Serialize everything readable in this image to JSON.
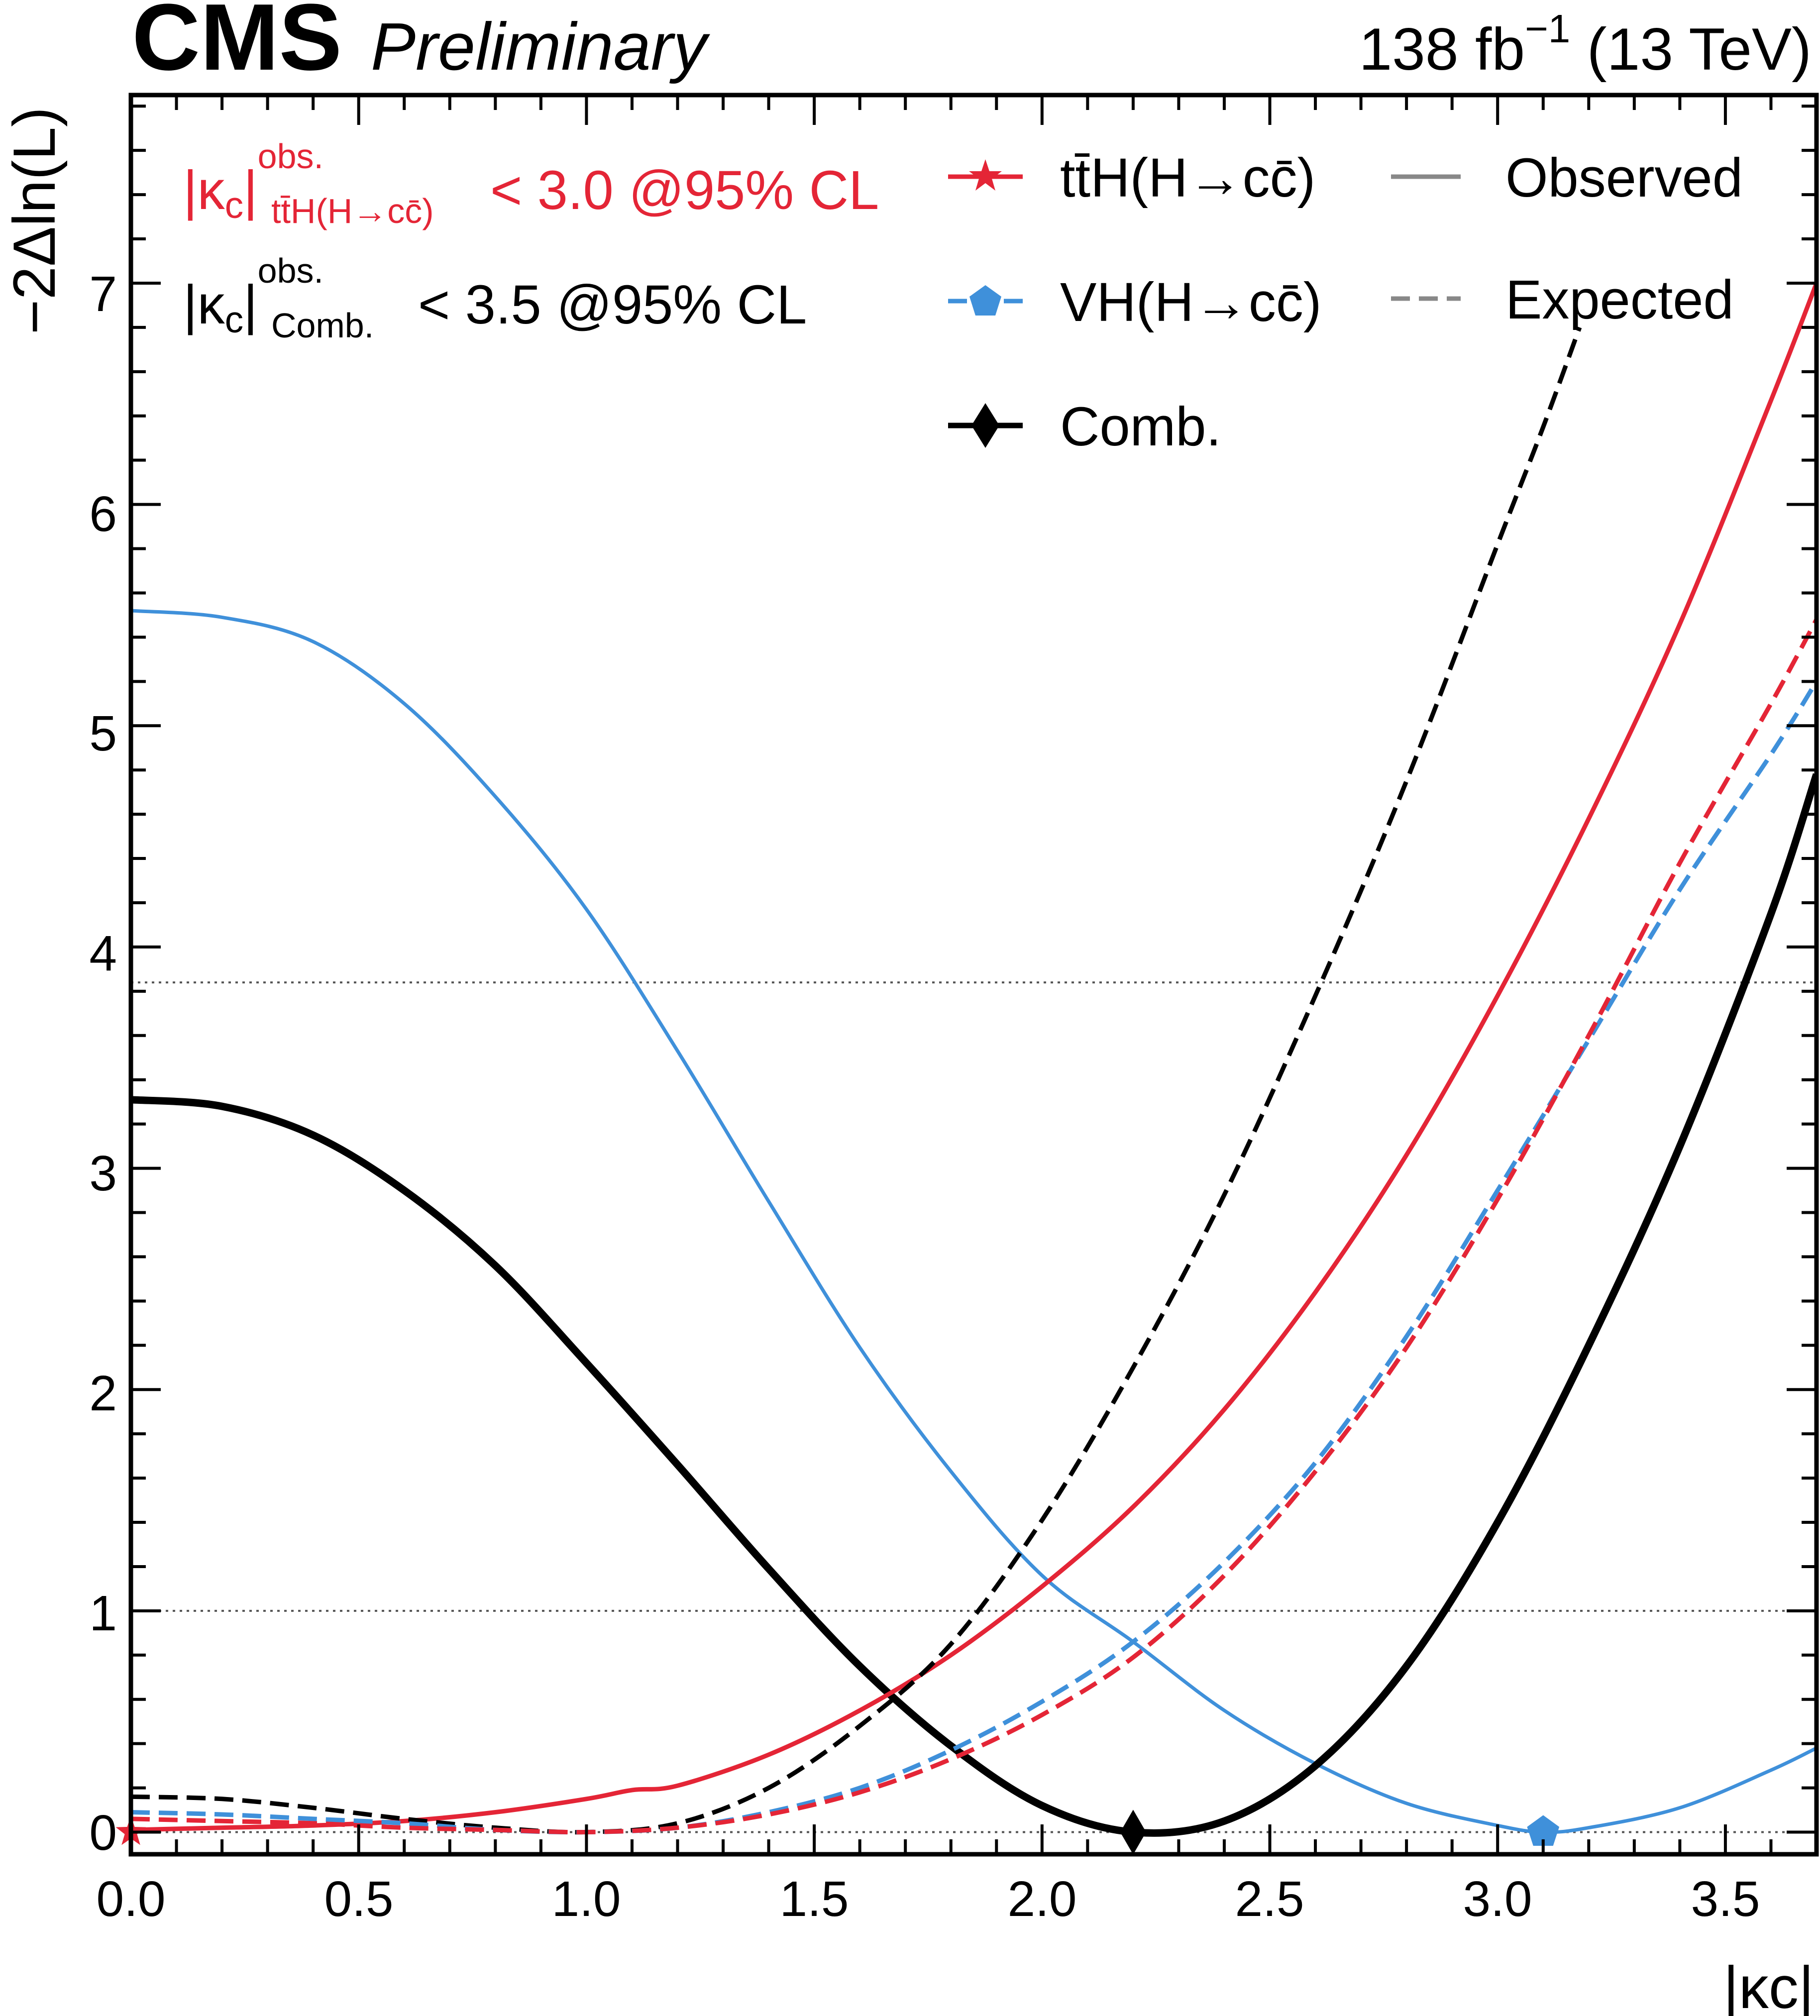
{
  "header": {
    "experiment": "CMS",
    "status": "Preliminary",
    "lumi_value": "138 fb",
    "lumi_exp": "−1",
    "energy": "(13 TeV)"
  },
  "annotations": {
    "tth_limit": {
      "prefix": "|κ",
      "sub": "c",
      "bar": "|",
      "sup": "obs.",
      "sub_label": "tt̄H(H→cc̄)",
      "text": "< 3.0 @95% CL",
      "color": "#e42536"
    },
    "comb_limit": {
      "prefix": "|κ",
      "sub": "c",
      "bar": "|",
      "sup": "obs.",
      "sub_label": "Comb.",
      "text": "< 3.5 @95% CL",
      "color": "#000000"
    }
  },
  "legend": {
    "entries": [
      {
        "label": "tt̄H(H→cc̄)",
        "color": "#e42536",
        "marker": "star"
      },
      {
        "label": "VH(H→cc̄)",
        "color": "#3f90da",
        "marker": "pentagon"
      },
      {
        "label": "Comb.",
        "color": "#000000",
        "marker": "diamond"
      }
    ],
    "styles": [
      {
        "label": "Observed",
        "color": "#888888",
        "dash": "solid"
      },
      {
        "label": "Expected",
        "color": "#888888",
        "dash": "dashed"
      }
    ]
  },
  "chart_data": {
    "type": "line",
    "xlabel": "|κc|",
    "ylabel": "−2Δln(L)",
    "xlim": [
      0.0,
      3.7
    ],
    "ylim": [
      -0.1,
      7.85
    ],
    "xticks": [
      "0.0",
      "0.5",
      "1.0",
      "1.5",
      "2.0",
      "2.5",
      "3.0",
      "3.5"
    ],
    "xtick_values": [
      0.0,
      0.5,
      1.0,
      1.5,
      2.0,
      2.5,
      3.0,
      3.5
    ],
    "yticks": [
      "0",
      "1",
      "2",
      "3",
      "4",
      "5",
      "6",
      "7"
    ],
    "ytick_values": [
      0,
      1,
      2,
      3,
      4,
      5,
      6,
      7
    ],
    "reference_lines": [
      0,
      1,
      3.84
    ],
    "best_fit": [
      {
        "series": "VH(H→cc̄)",
        "x": 3.1,
        "y": 0,
        "marker": "pentagon",
        "color": "#3f90da"
      },
      {
        "series": "Comb.",
        "x": 2.2,
        "y": 0,
        "marker": "diamond",
        "color": "#000000"
      },
      {
        "series": "tt̄H(H→cc̄)",
        "x": 0.0,
        "y": 0,
        "marker": "star",
        "color": "#e42536"
      }
    ],
    "series": [
      {
        "name": "VH(H→cc̄) observed",
        "color": "#3f90da",
        "dash": "solid",
        "width": 7,
        "x": [
          0.0,
          0.2,
          0.4,
          0.6,
          0.8,
          1.0,
          1.2,
          1.4,
          1.6,
          1.8,
          2.0,
          2.2,
          2.4,
          2.6,
          2.8,
          3.0,
          3.1,
          3.2,
          3.4,
          3.6,
          3.7
        ],
        "y": [
          5.52,
          5.49,
          5.38,
          5.1,
          4.68,
          4.17,
          3.53,
          2.85,
          2.19,
          1.63,
          1.16,
          0.86,
          0.55,
          0.31,
          0.13,
          0.03,
          0.0,
          0.02,
          0.11,
          0.28,
          0.38
        ]
      },
      {
        "name": "Comb. observed",
        "color": "#000000",
        "dash": "solid",
        "width": 15,
        "x": [
          0.0,
          0.2,
          0.4,
          0.6,
          0.8,
          1.0,
          1.2,
          1.4,
          1.6,
          1.8,
          2.0,
          2.2,
          2.4,
          2.6,
          2.8,
          3.0,
          3.2,
          3.4,
          3.6,
          3.7
        ],
        "y": [
          3.31,
          3.28,
          3.15,
          2.9,
          2.56,
          2.12,
          1.66,
          1.19,
          0.75,
          0.39,
          0.12,
          0.0,
          0.05,
          0.3,
          0.75,
          1.4,
          2.2,
          3.1,
          4.15,
          4.78
        ]
      },
      {
        "name": "tt̄H(H→cc̄) observed",
        "color": "#e42536",
        "dash": "solid",
        "width": 9,
        "x": [
          0.0,
          0.2,
          0.4,
          0.6,
          0.8,
          1.0,
          1.1,
          1.2,
          1.4,
          1.6,
          1.8,
          2.0,
          2.2,
          2.4,
          2.6,
          2.8,
          3.0,
          3.2,
          3.4,
          3.6,
          3.7
        ],
        "y": [
          0.01,
          0.02,
          0.03,
          0.05,
          0.09,
          0.15,
          0.19,
          0.21,
          0.35,
          0.55,
          0.8,
          1.11,
          1.47,
          1.91,
          2.44,
          3.06,
          3.78,
          4.58,
          5.46,
          6.47,
          7.0
        ]
      },
      {
        "name": "Comb. expected",
        "color": "#000000",
        "dash": "dashed",
        "width": 9,
        "x": [
          0.0,
          0.2,
          0.4,
          0.6,
          0.8,
          1.0,
          1.2,
          1.4,
          1.6,
          1.8,
          2.0,
          2.2,
          2.4,
          2.6,
          2.8,
          3.0,
          3.1,
          3.18
        ],
        "y": [
          0.16,
          0.15,
          0.11,
          0.06,
          0.02,
          0.0,
          0.04,
          0.2,
          0.48,
          0.85,
          1.41,
          2.1,
          2.88,
          3.78,
          4.75,
          5.82,
          6.35,
          6.8
        ]
      },
      {
        "name": "VH(H→cc̄) expected",
        "color": "#3f90da",
        "dash": "dashed",
        "width": 9,
        "x": [
          0.0,
          0.2,
          0.4,
          0.6,
          0.8,
          1.0,
          1.2,
          1.4,
          1.6,
          1.8,
          2.0,
          2.2,
          2.4,
          2.6,
          2.8,
          3.0,
          3.2,
          3.4,
          3.6,
          3.7
        ],
        "y": [
          0.09,
          0.08,
          0.06,
          0.04,
          0.01,
          0.0,
          0.02,
          0.09,
          0.2,
          0.37,
          0.59,
          0.86,
          1.22,
          1.67,
          2.24,
          2.9,
          3.58,
          4.26,
          4.87,
          5.2
        ]
      },
      {
        "name": "tt̄H(H→cc̄) expected",
        "color": "#e42536",
        "dash": "dashed",
        "width": 9,
        "x": [
          0.0,
          0.2,
          0.4,
          0.6,
          0.8,
          1.0,
          1.2,
          1.4,
          1.6,
          1.8,
          2.0,
          2.2,
          2.4,
          2.6,
          2.8,
          3.0,
          3.2,
          3.4,
          3.6,
          3.7
        ],
        "y": [
          0.06,
          0.05,
          0.04,
          0.02,
          0.01,
          0.0,
          0.02,
          0.08,
          0.18,
          0.33,
          0.53,
          0.79,
          1.16,
          1.63,
          2.19,
          2.86,
          3.6,
          4.38,
          5.1,
          5.48
        ]
      }
    ]
  }
}
